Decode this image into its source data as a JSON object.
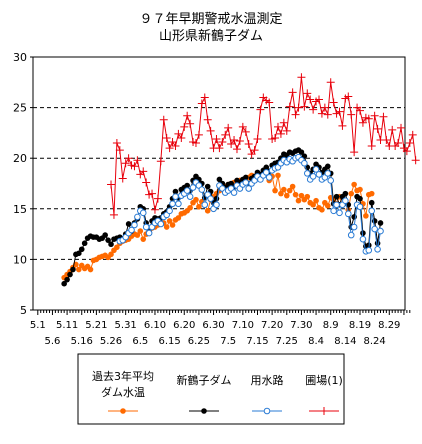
{
  "chart_data": {
    "type": "line",
    "title": "９７年早期警戒水温測定",
    "subtitle": "山形県新鶴子ダム",
    "xlabel": "",
    "ylabel": "",
    "ylim": [
      5,
      30
    ],
    "yticks": [
      5,
      10,
      15,
      20,
      25,
      30
    ],
    "grid": "dashed horizontal at 10, 15, 20, 25",
    "x_start": "5.1",
    "x_ticks_row1": [
      "5.1",
      "5.11",
      "5.21",
      "5.31",
      "6.10",
      "6.20",
      "6.30",
      "7.10",
      "7.20",
      "7.30",
      "8.9",
      "8.19",
      "8.29"
    ],
    "x_ticks_row2": [
      "5.6",
      "5.16",
      "5.26",
      "6.5",
      "6.15",
      "6.25",
      "7.5",
      "7.15",
      "7.25",
      "8.4",
      "8.14",
      "8.24"
    ],
    "legend_placement": "bottom",
    "series": [
      {
        "name": "過去3年平均ダム水温",
        "color": "#ff6a00",
        "marker": "filled-circle",
        "values": [
          null,
          null,
          null,
          null,
          null,
          null,
          null,
          null,
          null,
          8.2,
          8.5,
          8.8,
          9.2,
          9.5,
          9.0,
          9.4,
          9.1,
          9.3,
          9.0,
          9.9,
          10.0,
          10.2,
          10.3,
          10.4,
          10.2,
          10.5,
          10.9,
          11.2,
          11.6,
          11.8,
          11.9,
          12.0,
          12.3,
          12.5,
          12.4,
          12.8,
          12.0,
          12.5,
          12.8,
          13.1,
          13.2,
          13.4,
          13.5,
          13.6,
          13.2,
          13.8,
          13.4,
          13.9,
          14.1,
          14.5,
          14.6,
          14.8,
          15.1,
          15.6,
          15.9,
          15.2,
          15.7,
          15.4,
          14.8,
          15.9,
          16.2,
          16.5,
          16.8,
          16.9,
          17.2,
          17.4,
          17.3,
          17.6,
          17.2,
          17.8,
          17.6,
          17.9,
          18.1,
          18.3,
          18.2,
          18.4,
          18.1,
          18.5,
          18.6,
          17.8,
          18.2,
          16.8,
          18.3,
          16.5,
          16.9,
          16.3,
          16.8,
          17.2,
          16.4,
          15.8,
          16.3,
          15.9,
          16.2,
          15.6,
          15.4,
          15.8,
          15.1,
          14.9,
          15.6,
          15.3,
          16.1,
          15.9,
          15.5,
          16.2,
          15.4,
          15.7,
          14.9,
          16.5,
          17.4,
          16.8,
          16.9,
          15.5,
          14.3,
          16.4,
          16.5
        ]
      },
      {
        "name": "新鶴子ダム",
        "color": "#000000",
        "marker": "filled-circle",
        "values": [
          null,
          null,
          null,
          null,
          null,
          null,
          null,
          null,
          null,
          7.6,
          8.0,
          8.5,
          9.0,
          10.5,
          10.6,
          11.0,
          11.6,
          12.1,
          12.3,
          12.2,
          12.2,
          12.0,
          12.1,
          12.4,
          11.9,
          11.5,
          12.0,
          12.1,
          12.2,
          12.0,
          12.5,
          13.5,
          12.8,
          13.6,
          14.0,
          15.2,
          15.0,
          13.6,
          12.7,
          13.8,
          14.1,
          14.0,
          14.1,
          14.5,
          14.7,
          15.2,
          16.0,
          16.7,
          16.1,
          16.9,
          17.1,
          17.3,
          16.8,
          17.8,
          18.2,
          17.9,
          17.5,
          16.1,
          17.2,
          16.7,
          15.6,
          16.0,
          17.9,
          17.5,
          17.1,
          17.4,
          17.5,
          17.2,
          17.8,
          17.6,
          17.9,
          18.1,
          17.5,
          18.0,
          18.2,
          18.6,
          18.4,
          18.8,
          19.1,
          18.7,
          19.3,
          19.5,
          19.6,
          20.0,
          20.4,
          20.3,
          20.6,
          20.5,
          20.7,
          20.8,
          20.6,
          20.2,
          19.1,
          18.5,
          18.9,
          19.4,
          19.1,
          18.6,
          18.9,
          19.2,
          18.5,
          15.5,
          16.2,
          15.4,
          16.2,
          16.5,
          15.4,
          13.2,
          14.2,
          16.2,
          16.0,
          12.6,
          11.3,
          11.4,
          15.6,
          13.8,
          11.6,
          13.6
        ]
      },
      {
        "name": "用水路",
        "color": "#2a7bd4",
        "marker": "open-circle",
        "values": [
          null,
          null,
          null,
          null,
          null,
          null,
          null,
          null,
          null,
          null,
          null,
          null,
          null,
          null,
          null,
          null,
          null,
          null,
          null,
          null,
          null,
          null,
          null,
          null,
          null,
          null,
          null,
          null,
          11.8,
          11.9,
          12.2,
          12.6,
          12.9,
          13.4,
          14.2,
          14.8,
          14.6,
          13.2,
          12.6,
          13.2,
          13.6,
          13.8,
          13.5,
          14.2,
          14.4,
          14.8,
          15.5,
          16.2,
          15.5,
          16.3,
          16.5,
          16.8,
          16.2,
          17.1,
          17.6,
          17.3,
          16.9,
          15.4,
          16.4,
          16.0,
          15.0,
          15.4,
          17.3,
          17.0,
          16.6,
          16.8,
          17.0,
          16.6,
          17.3,
          17.0,
          17.4,
          17.6,
          17.0,
          17.5,
          17.8,
          18.2,
          17.9,
          18.3,
          18.6,
          18.1,
          18.8,
          19.0,
          19.1,
          19.5,
          19.8,
          19.6,
          19.9,
          19.7,
          20.0,
          20.1,
          19.8,
          19.5,
          18.5,
          17.9,
          18.2,
          18.9,
          18.4,
          17.9,
          18.1,
          18.5,
          17.8,
          14.8,
          15.4,
          14.6,
          15.4,
          15.8,
          14.5,
          12.4,
          13.2,
          15.4,
          15.2,
          12.0,
          10.8,
          10.9,
          14.8,
          13.0,
          11.0,
          12.8
        ]
      },
      {
        "name": "圃場(1)",
        "color": "#e8000b",
        "marker": "plus",
        "values": [
          null,
          null,
          null,
          null,
          null,
          null,
          null,
          null,
          null,
          null,
          null,
          null,
          null,
          null,
          null,
          null,
          null,
          null,
          null,
          null,
          null,
          null,
          null,
          null,
          null,
          17.4,
          14.4,
          21.5,
          20.8,
          18.0,
          19.5,
          20.0,
          19.3,
          19.2,
          19.8,
          18.4,
          18.7,
          17.6,
          16.4,
          16.5,
          14.9,
          16.0,
          19.7,
          23.8,
          22.0,
          21.0,
          21.6,
          21.2,
          22.4,
          22.0,
          23.1,
          24.2,
          23.4,
          21.6,
          21.5,
          22.3,
          25.4,
          26.0,
          23.8,
          22.7,
          21.0,
          21.9,
          21.0,
          21.6,
          22.3,
          23.0,
          21.4,
          21.8,
          20.9,
          21.7,
          23.1,
          22.6,
          21.4,
          20.4,
          20.8,
          21.9,
          24.8,
          26.0,
          25.7,
          25.5,
          21.9,
          22.0,
          23.1,
          22.4,
          23.5,
          22.7,
          25.1,
          26.5,
          24.3,
          25.0,
          28.0,
          25.1,
          26.4,
          25.8,
          24.8,
          25.6,
          25.8,
          24.4,
          25.0,
          24.3,
          27.5,
          25.5,
          24.4,
          24.6,
          23.2,
          25.9,
          26.1,
          24.3,
          20.6,
          25.0,
          24.7,
          23.5,
          24.0,
          23.9,
          21.2,
          24.2,
          22.9,
          21.8,
          24.1,
          21.8,
          21.2,
          22.8,
          21.2,
          21.5,
          23.0,
          21.0,
          20.7,
          21.5,
          22.3,
          19.8
        ]
      }
    ]
  }
}
